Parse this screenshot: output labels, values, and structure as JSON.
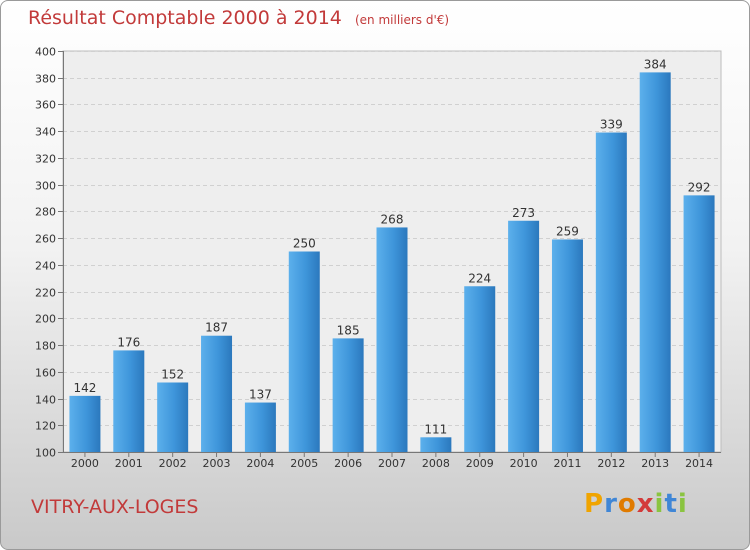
{
  "header": {
    "title": "Résultat Comptable 2000 à 2014",
    "subtitle": "(en milliers d'€)"
  },
  "footer": {
    "commune": "VITRY-AUX-LOGES",
    "logo_text": "Proxiti"
  },
  "chart_data": {
    "type": "bar",
    "title": "Résultat Comptable 2000 à 2014",
    "subtitle": "(en milliers d'€)",
    "xlabel": "",
    "ylabel": "",
    "categories": [
      "2000",
      "2001",
      "2002",
      "2003",
      "2004",
      "2005",
      "2006",
      "2007",
      "2008",
      "2009",
      "2010",
      "2011",
      "2012",
      "2013",
      "2014"
    ],
    "values": [
      142,
      176,
      152,
      187,
      137,
      250,
      185,
      268,
      111,
      224,
      273,
      259,
      339,
      384,
      292
    ],
    "data_labels": [
      "142",
      "176",
      "152",
      "187",
      "137",
      "250",
      "185",
      "268",
      "111",
      "224",
      "273",
      "259",
      "339",
      "384",
      "292"
    ],
    "ylim": [
      100,
      400
    ],
    "yticks": [
      100,
      120,
      140,
      160,
      180,
      200,
      220,
      240,
      260,
      280,
      300,
      320,
      340,
      360,
      380,
      400
    ],
    "grid": true,
    "legend": "none",
    "bar_color": "#3a8fd6",
    "bar_color_light": "#5cb0ec",
    "bar_color_dark": "#2b78bd"
  },
  "colors": {
    "title": "#c23a3a",
    "logo_letters": [
      "#f0a400",
      "#3f86d6",
      "#e07b00",
      "#d33a3a",
      "#8ac440",
      "#3f86d6",
      "#8ac440"
    ]
  }
}
